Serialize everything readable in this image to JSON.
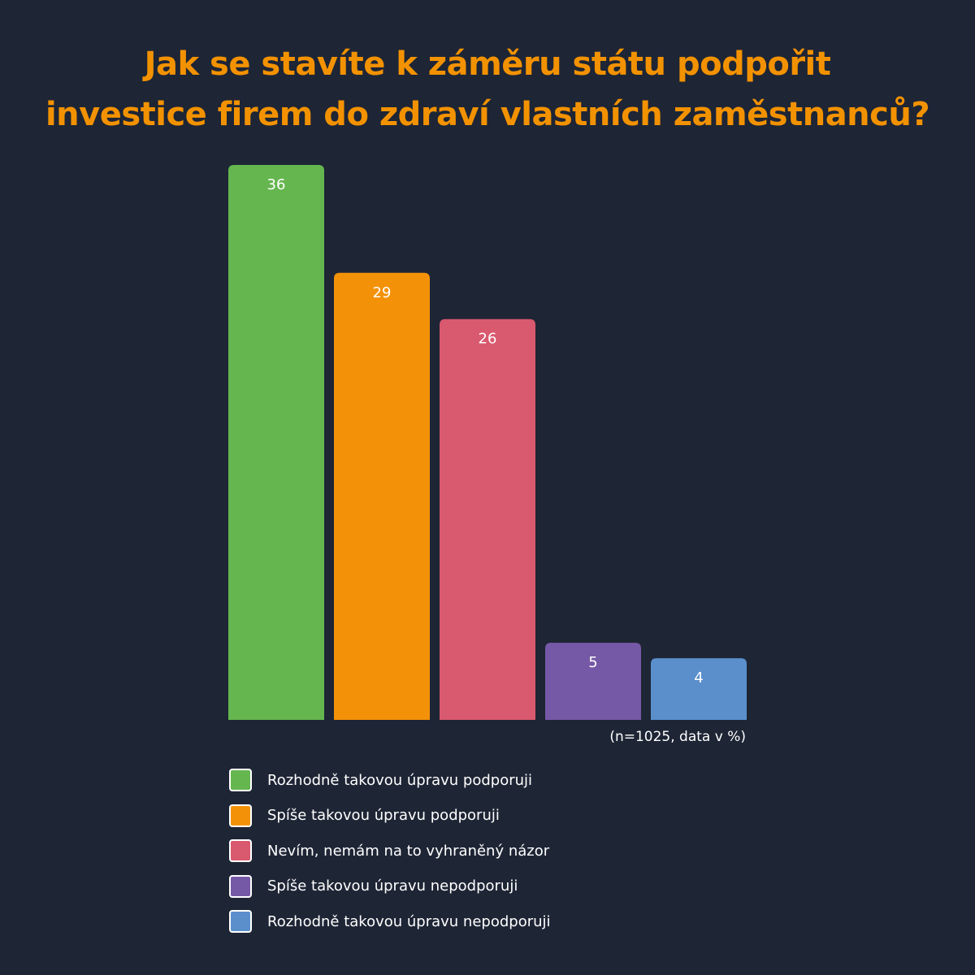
{
  "title": {
    "line1": "Jak se stavíte k záměru státu podpořit",
    "line2": "investice firem do zdraví vlastních zaměstnanců?"
  },
  "note": "(n=1025, data v %)",
  "chart_data": {
    "type": "bar",
    "categories": [
      "Rozhodně takovou úpravu podporuji",
      "Spíše takovou úpravu podporuji",
      "Nevím, nemám na to vyhraněný názor",
      "Spíše takovou úpravu nepodporuji",
      "Rozhodně takovou úpravu nepodporuji"
    ],
    "values": [
      36,
      29,
      26,
      5,
      4
    ],
    "colors": [
      "#65b64f",
      "#f39208",
      "#d9596e",
      "#7659a6",
      "#5a8fcc"
    ],
    "title": "Jak se stavíte k záměru státu podpořit investice firem do zdraví vlastních zaměstnanců?",
    "unit": "%",
    "ylim": [
      0,
      36
    ],
    "grid": false,
    "legend_position": "bottom",
    "show_data_labels": true
  },
  "colors": {
    "background": "#1e2535",
    "title": "#f39200",
    "label_text": "#ffffff"
  }
}
